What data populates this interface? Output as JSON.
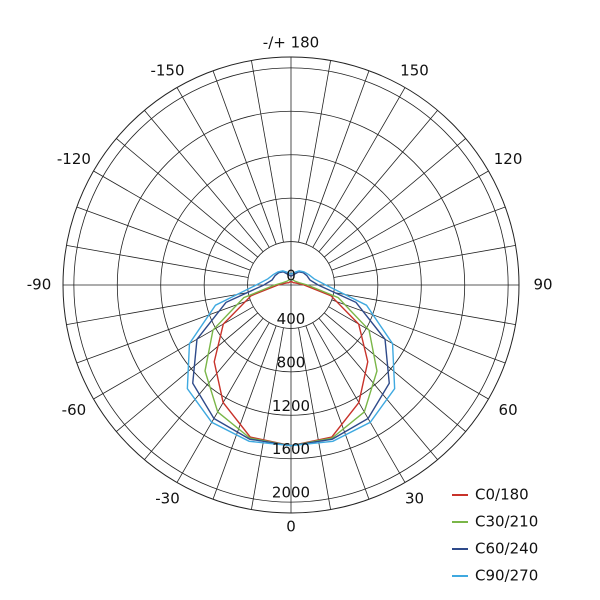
{
  "chart_data": {
    "type": "polar",
    "theta": [
      -180,
      -165,
      -150,
      -135,
      -120,
      -105,
      -90,
      -75,
      -60,
      -45,
      -30,
      -15,
      0,
      15,
      30,
      45,
      60,
      75,
      90,
      105,
      120,
      135,
      150,
      165,
      180
    ],
    "series": [
      {
        "name": "C0/180",
        "color": "#c8322a",
        "values": [
          30,
          30,
          30,
          30,
          40,
          60,
          120,
          380,
          720,
          1000,
          1250,
          1450,
          1480,
          1450,
          1250,
          1000,
          720,
          380,
          120,
          60,
          40,
          30,
          30,
          30,
          30
        ]
      },
      {
        "name": "C30/210",
        "color": "#7ab648",
        "values": [
          50,
          50,
          50,
          50,
          60,
          80,
          150,
          450,
          830,
          1120,
          1350,
          1460,
          1480,
          1460,
          1350,
          1120,
          830,
          450,
          150,
          80,
          60,
          50,
          50,
          50,
          50
        ]
      },
      {
        "name": "C60/240",
        "color": "#2e4a8a",
        "values": [
          80,
          100,
          140,
          160,
          170,
          180,
          250,
          620,
          1000,
          1280,
          1420,
          1470,
          1480,
          1470,
          1420,
          1280,
          1000,
          620,
          250,
          180,
          170,
          160,
          140,
          100,
          80
        ]
      },
      {
        "name": "C90/270",
        "color": "#3fa9e0",
        "values": [
          100,
          120,
          150,
          170,
          190,
          220,
          320,
          720,
          1080,
          1350,
          1460,
          1490,
          1480,
          1490,
          1460,
          1350,
          1080,
          720,
          320,
          220,
          190,
          170,
          150,
          120,
          100
        ]
      }
    ],
    "rlim": [
      0,
      2100
    ],
    "rticks": [
      0,
      400,
      800,
      1200,
      1600,
      2000
    ],
    "thetaticks": [
      -150,
      -120,
      -90,
      -60,
      -30,
      0,
      30,
      60,
      90,
      120,
      150,
      {
        "value": 180,
        "label": "-/+ 180"
      }
    ],
    "legend": "lower right"
  }
}
